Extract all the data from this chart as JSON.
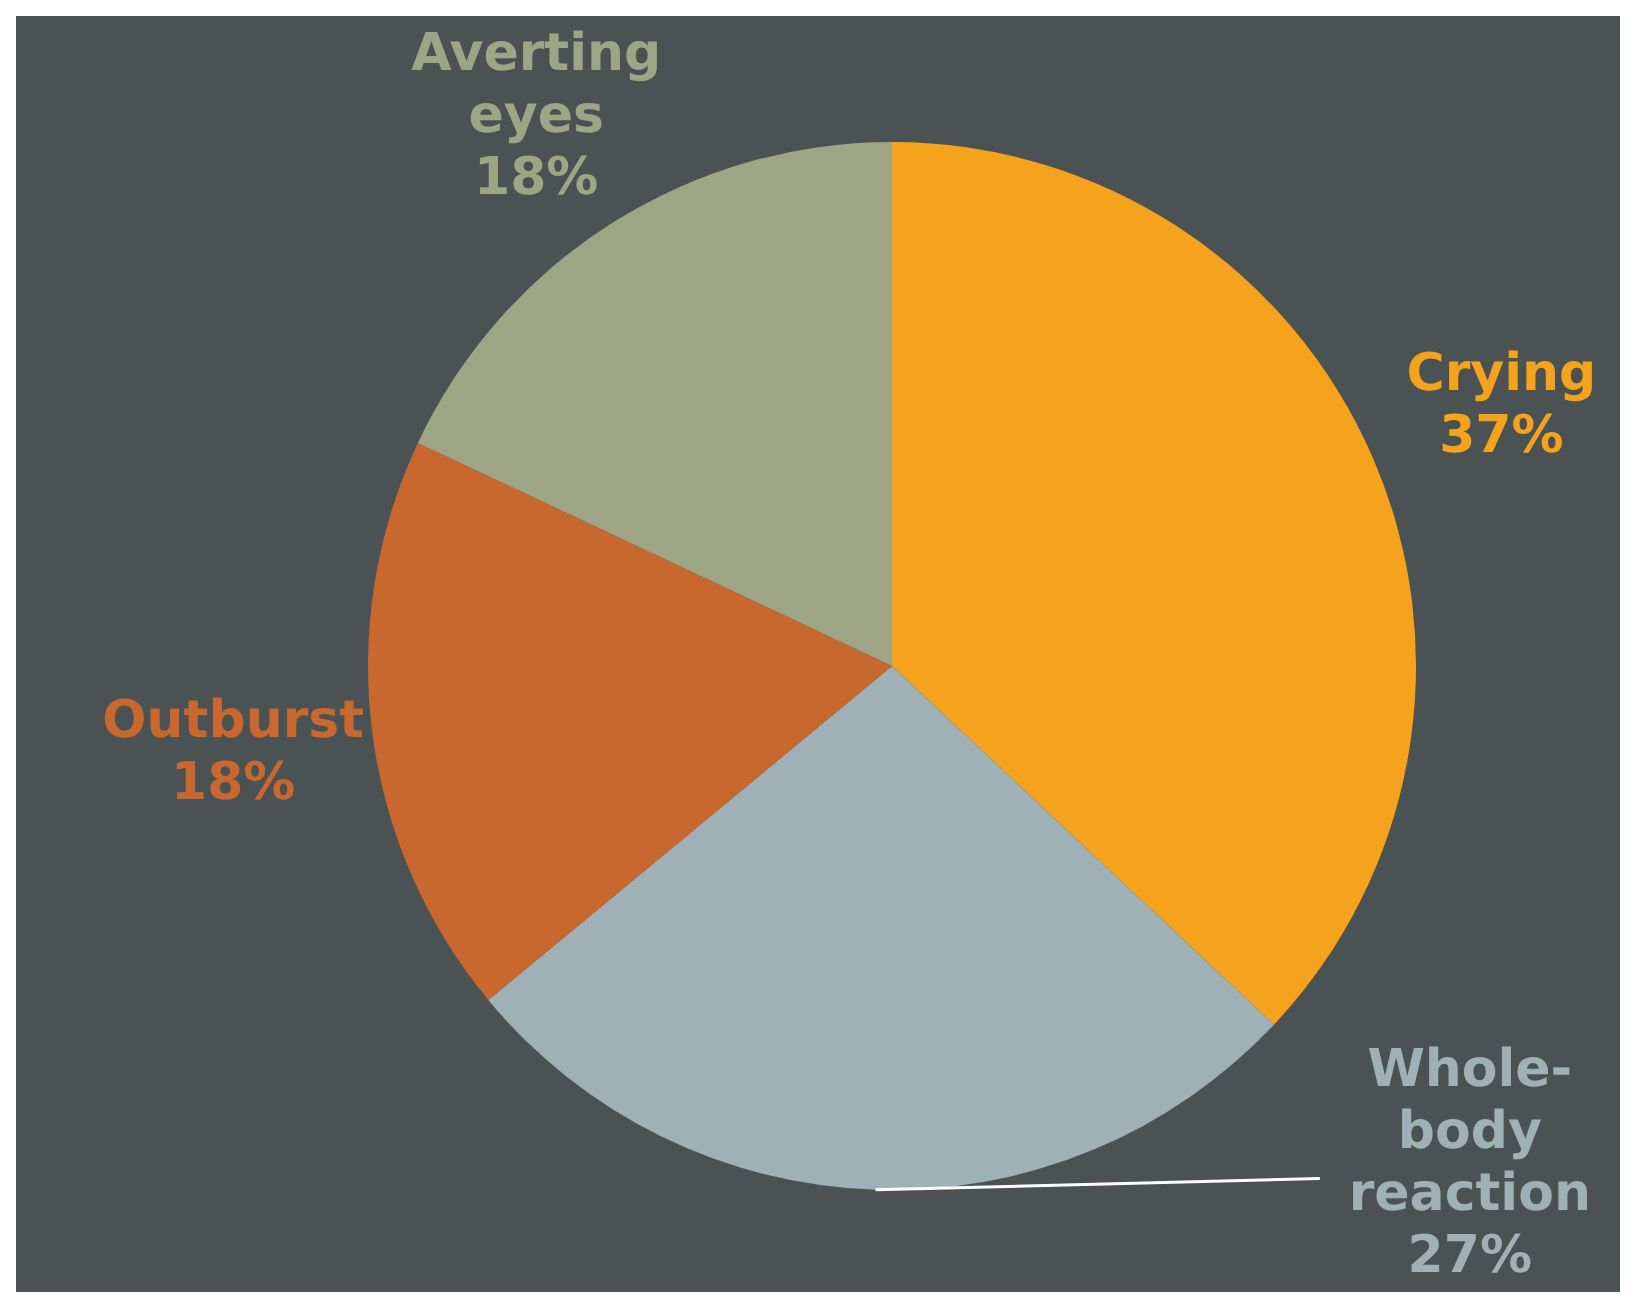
{
  "chart_data": {
    "type": "pie",
    "categories": [
      "Crying",
      "Whole-body reaction",
      "Outburst",
      "Averting eyes"
    ],
    "values": [
      37,
      27,
      18,
      18
    ],
    "colors": [
      "#f5a31c",
      "#9fb1b6",
      "#c8672e",
      "#9ea585"
    ],
    "value_labels": [
      "37%",
      "27%",
      "18%",
      "18%"
    ]
  }
}
